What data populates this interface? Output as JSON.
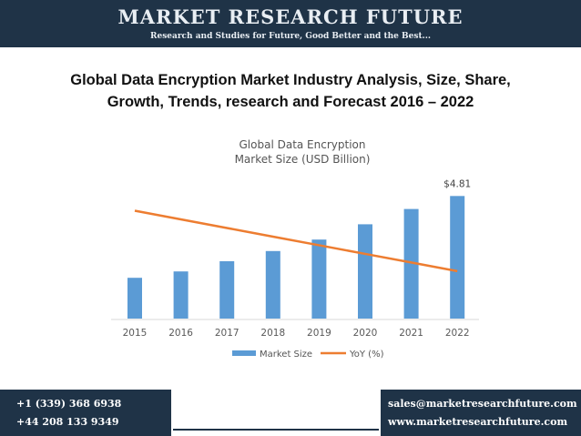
{
  "header": {
    "brand": "MARKET RESEARCH FUTURE",
    "tagline": "Research and Studies for Future, Good Better and the Best..."
  },
  "title_line1": "Global Data Encryption Market Industry Analysis, Size, Share,",
  "title_line2": "Growth, Trends, research and Forecast 2016 – 2022",
  "chart_data": {
    "type": "bar",
    "title_line1": "Global Data Encryption",
    "title_line2": "Market Size (USD Billion)",
    "categories": [
      "2015",
      "2016",
      "2017",
      "2018",
      "2019",
      "2020",
      "2021",
      "2022"
    ],
    "series": [
      {
        "name": "Market Size",
        "type": "bar",
        "color": "#5b9bd5",
        "values": [
          1.6,
          1.85,
          2.25,
          2.65,
          3.1,
          3.7,
          4.3,
          4.81
        ]
      },
      {
        "name": "YoY (%)",
        "type": "line",
        "color": "#ed7d31",
        "values": [
          100,
          92,
          84,
          76,
          68,
          60,
          52,
          44
        ]
      }
    ],
    "data_labels": [
      {
        "category": "2022",
        "text": "$4.81"
      }
    ],
    "ylim": [
      0,
      5.5
    ],
    "yoy_ylim": [
      0,
      130
    ],
    "grid": false,
    "legend_position": "bottom"
  },
  "footer": {
    "phone1": "+1 (339) 368 6938",
    "phone2": "+44 208 133 9349",
    "email": "sales@marketresearchfuture.com",
    "website": "www.marketresearchfuture.com"
  },
  "colors": {
    "navy": "#1f3347",
    "bar": "#5b9bd5",
    "line": "#ed7d31"
  }
}
